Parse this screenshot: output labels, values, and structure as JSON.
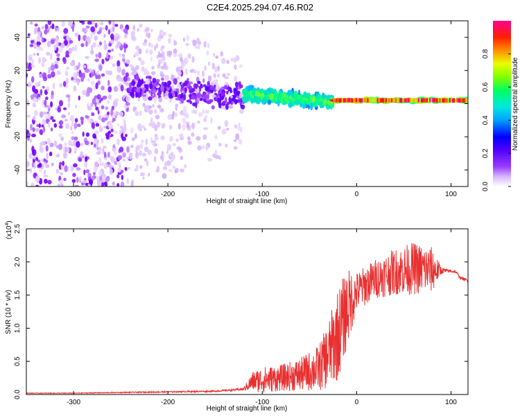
{
  "figure_title": "C2E4.2025.294.07.46.R02",
  "chart_data": [
    {
      "type": "heatmap",
      "title": "C2E4.2025.294.07.46.R02",
      "xlabel": "Height of straight line (km)",
      "ylabel": "Frequency (Hz)",
      "xlim": [
        -350,
        118
      ],
      "ylim": [
        -50,
        50
      ],
      "xticks": [
        -300,
        -200,
        -100,
        0,
        100
      ],
      "xtick_labels": [
        "-300",
        "-200",
        "-100",
        "0",
        "100"
      ],
      "yticks": [
        -40,
        -20,
        0,
        20,
        40
      ],
      "ytick_labels": [
        "-40",
        "-20",
        "0",
        "20",
        "40"
      ],
      "colorbar": {
        "label": "Normalized spectral amplitude",
        "range": [
          0,
          1
        ],
        "ticks": [
          0.0,
          0.2,
          0.4,
          0.6,
          0.8
        ],
        "tick_labels": [
          "0.0",
          "0.2",
          "0.4",
          "0.6",
          "0.8"
        ],
        "colormap": [
          "#ffffff",
          "#d7b5ff",
          "#7a00ff",
          "#0000ff",
          "#00c8ff",
          "#00ff80",
          "#c8ff00",
          "#ff8000",
          "#ff0000",
          "#ff00aa"
        ]
      },
      "regions": [
        {
          "x_range": [
            -350,
            -240
          ],
          "freq_center_hz": 0,
          "freq_spread_hz": 50,
          "amplitude": 0.15,
          "description": "broadband noise"
        },
        {
          "x_range": [
            -240,
            -120
          ],
          "freq_center_hz": 8,
          "freq_spread_hz": 12,
          "amplitude": 0.2
        },
        {
          "x_range": [
            -120,
            -25
          ],
          "freq_center_hz": 2,
          "freq_spread_hz": 6,
          "amplitude": 0.5
        },
        {
          "x_range": [
            -25,
            118
          ],
          "freq_center_hz": 2,
          "freq_spread_hz": 2,
          "amplitude": 0.95
        }
      ]
    },
    {
      "type": "line",
      "xlabel": "Height of straight line (km)",
      "ylabel": "SNR (10 * v/v)",
      "y_multiplier_label": "(x10",
      "y_multiplier_exp": "4",
      "y_multiplier_close": ")",
      "xlim": [
        -350,
        118
      ],
      "ylim": [
        0,
        2.5
      ],
      "xticks": [
        -300,
        -200,
        -100,
        0,
        100
      ],
      "xtick_labels": [
        "-300",
        "-200",
        "-100",
        "0",
        "100"
      ],
      "yticks": [
        0.0,
        0.5,
        1.0,
        1.5,
        2.0,
        2.5
      ],
      "ytick_labels": [
        "0.0",
        "0.5",
        "1.0",
        "1.5",
        "2.0",
        "2.5"
      ],
      "series": [
        {
          "name": "SNR",
          "color": "#e83030",
          "x": [
            -350,
            -300,
            -250,
            -200,
            -150,
            -120,
            -110,
            -100,
            -80,
            -60,
            -40,
            -30,
            -20,
            -10,
            0,
            20,
            40,
            60,
            80,
            90,
            100,
            105,
            110,
            118
          ],
          "y": [
            0.02,
            0.02,
            0.03,
            0.04,
            0.05,
            0.08,
            0.2,
            0.22,
            0.25,
            0.3,
            0.4,
            0.6,
            0.9,
            1.3,
            1.55,
            1.75,
            1.85,
            1.9,
            1.88,
            1.87,
            1.86,
            1.85,
            1.76,
            1.72
          ],
          "noise_amplitude": [
            0.005,
            0.005,
            0.008,
            0.01,
            0.01,
            0.02,
            0.15,
            0.2,
            0.2,
            0.25,
            0.35,
            0.5,
            0.7,
            0.6,
            0.3,
            0.3,
            0.35,
            0.4,
            0.35,
            0.05,
            0.02,
            0.02,
            0.02,
            0.02
          ]
        }
      ]
    }
  ]
}
